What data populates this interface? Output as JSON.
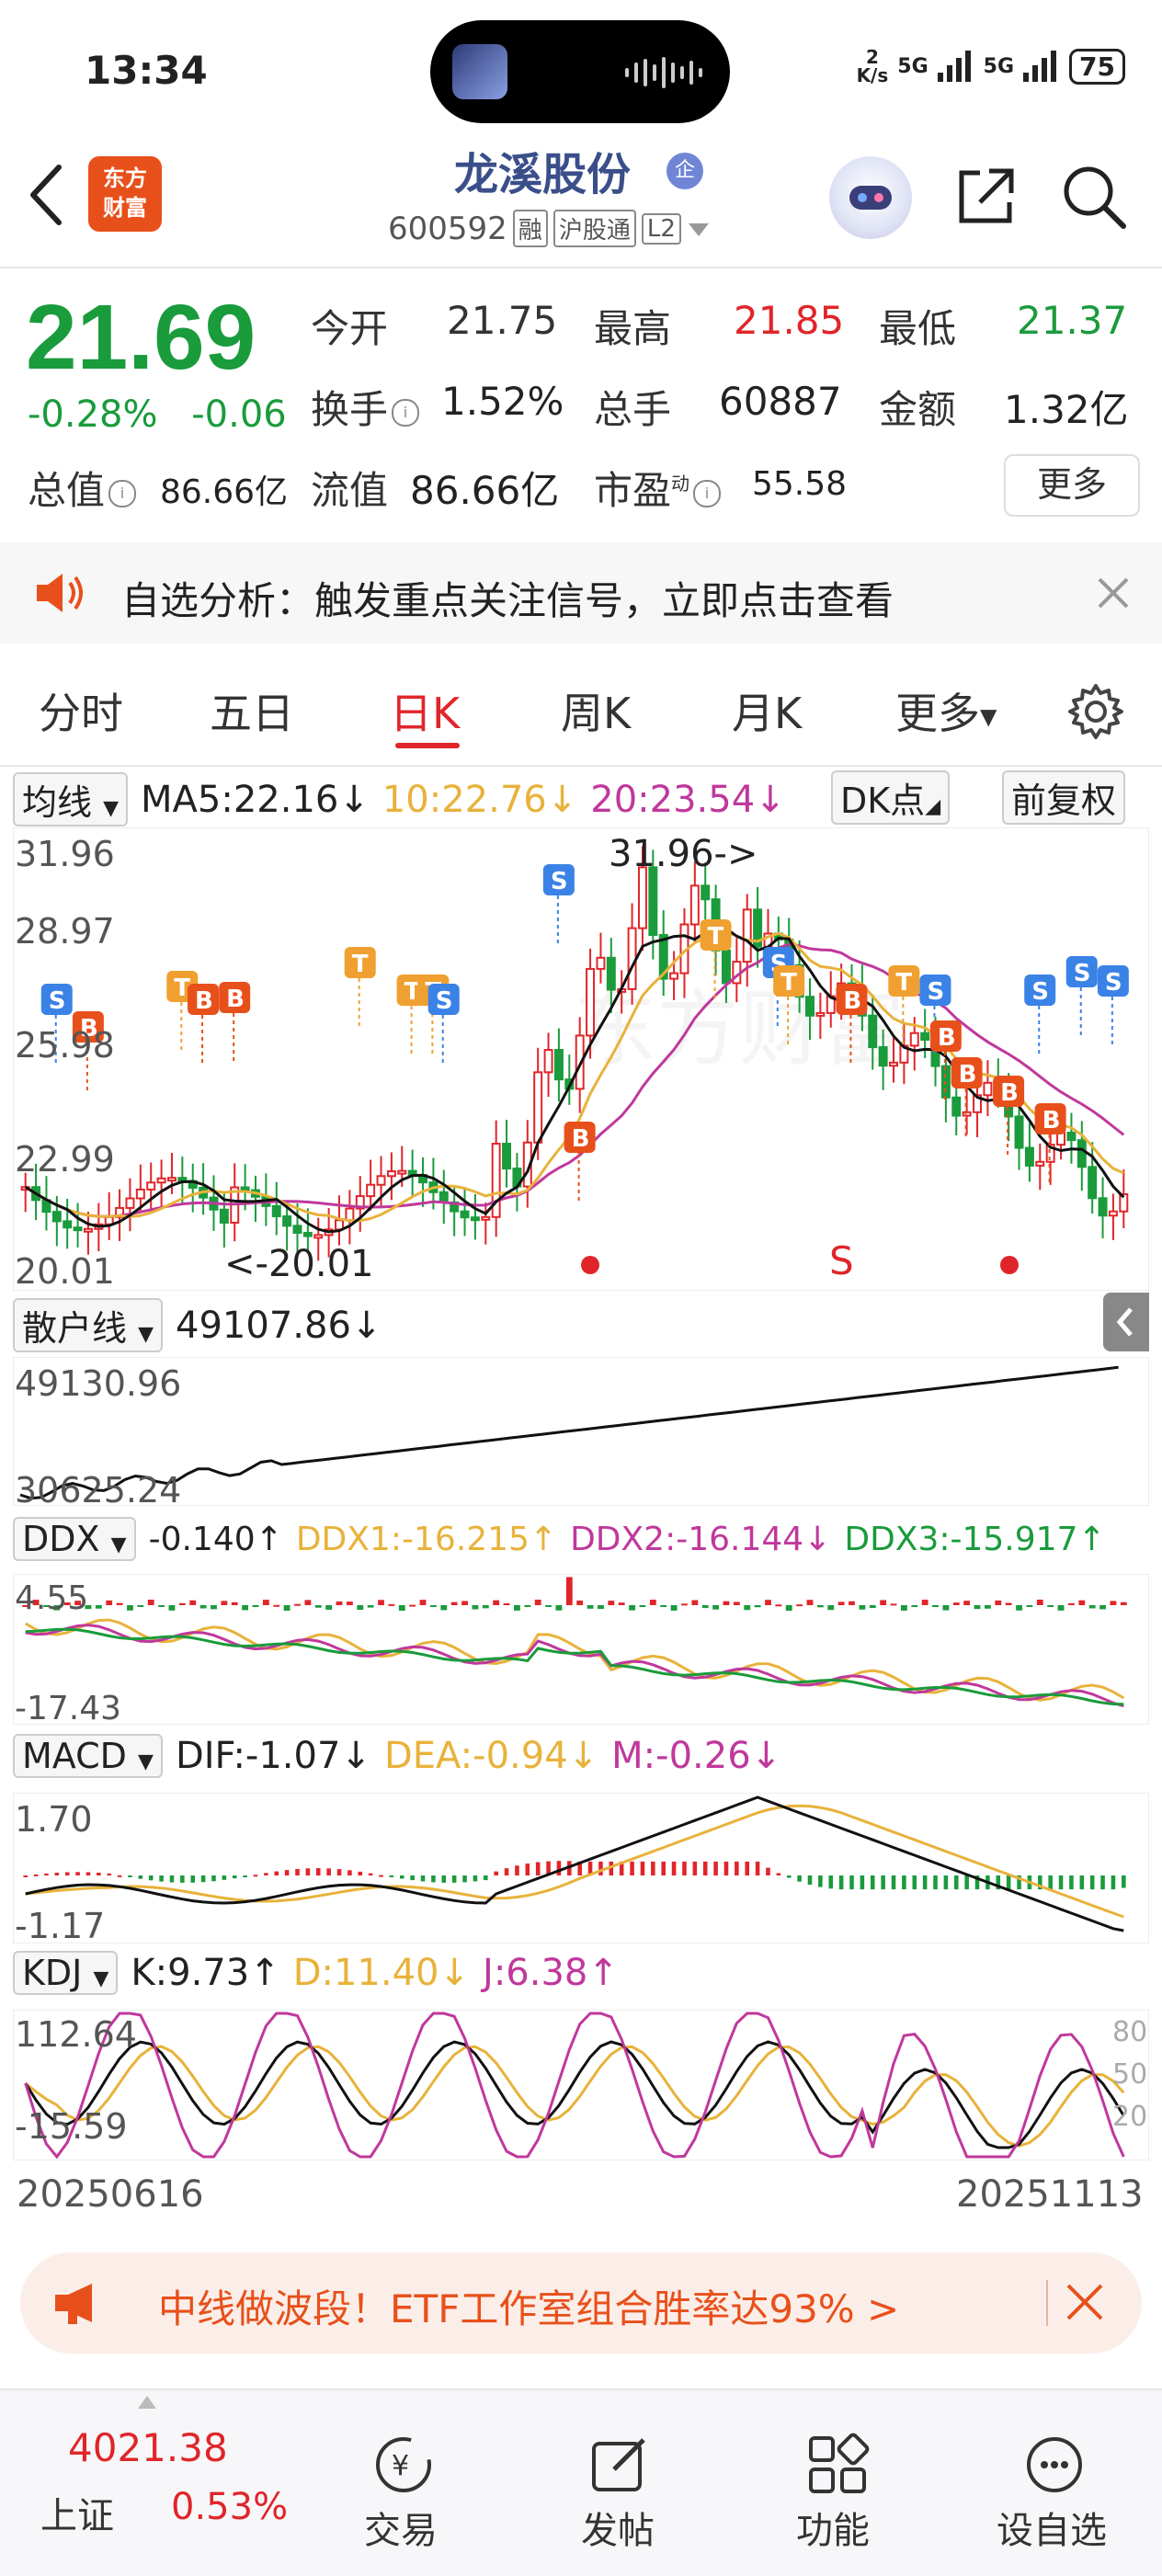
{
  "status_bar": {
    "time": "13:34",
    "net_speed_top": "2",
    "net_speed_unit": "K/s",
    "sig1": "5G",
    "sig2": "5G",
    "battery": "75"
  },
  "header": {
    "logo_line1": "东方",
    "logo_line2": "财富",
    "stock_name": "龙溪股份",
    "badge": "企",
    "code": "600592",
    "tags": [
      "融",
      "沪股通",
      "L2"
    ]
  },
  "quote": {
    "price": "21.69",
    "change_pct": "-0.28%",
    "change": "-0.06",
    "open_label": "今开",
    "open": "21.75",
    "high_label": "最高",
    "high": "21.85",
    "low_label": "最低",
    "low": "21.37",
    "turnover_label": "换手",
    "turnover": "1.52%",
    "volume_label": "总手",
    "volume": "60887",
    "amount_label": "金额",
    "amount": "1.32亿",
    "mktcap_label": "总值",
    "mktcap": "86.66亿",
    "float_label": "流值",
    "float_cap": "86.66亿",
    "pe_label": "市盈",
    "pe_sup": "动",
    "pe": "55.58",
    "more": "更多"
  },
  "notice": {
    "text": "自选分析：触发重点关注信号，立即点击查看"
  },
  "tabs": [
    {
      "label": "分时"
    },
    {
      "label": "五日"
    },
    {
      "label": "日K"
    },
    {
      "label": "周K"
    },
    {
      "label": "月K"
    },
    {
      "label": "更多"
    }
  ],
  "main_chart": {
    "selector": "均线",
    "ma5": "MA5:22.16",
    "ma10": "10:22.76",
    "ma20": "20:23.54",
    "dk": "DK点",
    "adj": "前复权",
    "y_labels": [
      "31.96",
      "28.97",
      "25.98",
      "22.99",
      "20.01"
    ],
    "max_label": "31.96->",
    "min_label": "<-20.01",
    "s_mark": "S"
  },
  "retail": {
    "selector": "散户线",
    "value": "49107.86",
    "y_top": "49130.96",
    "y_bottom": "30625.24"
  },
  "ddx": {
    "selector": "DDX",
    "value": "-0.140",
    "ddx1": "DDX1:-16.215",
    "ddx2": "DDX2:-16.144",
    "ddx3": "DDX3:-15.917",
    "y_top": "4.55",
    "y_bottom": "-17.43"
  },
  "macd": {
    "selector": "MACD",
    "dif": "DIF:-1.07",
    "dea": "DEA:-0.94",
    "m": "M:-0.26",
    "y_top": "1.70",
    "y_bottom": "-1.17"
  },
  "kdj": {
    "selector": "KDJ",
    "k": "K:9.73",
    "d": "D:11.40",
    "j": "J:6.38",
    "y_top": "112.64",
    "y_bottom": "-15.59",
    "levels": [
      "80",
      "50",
      "20"
    ]
  },
  "dates": {
    "start": "20250616",
    "end": "20251113"
  },
  "banner": {
    "text": "中线做波段！ETF工作室组合胜率达93% >"
  },
  "bottom_nav": {
    "index_value": "4021.38",
    "index_name": "上证",
    "index_pct": "0.53%",
    "items": [
      {
        "label": "交易"
      },
      {
        "label": "发帖"
      },
      {
        "label": "功能"
      },
      {
        "label": "设自选"
      }
    ]
  },
  "colors": {
    "up": "#e0252a",
    "down": "#1a9b3c",
    "accent": "#e8501b",
    "ma10": "#e8b23a",
    "ma20": "#c0389c"
  }
}
